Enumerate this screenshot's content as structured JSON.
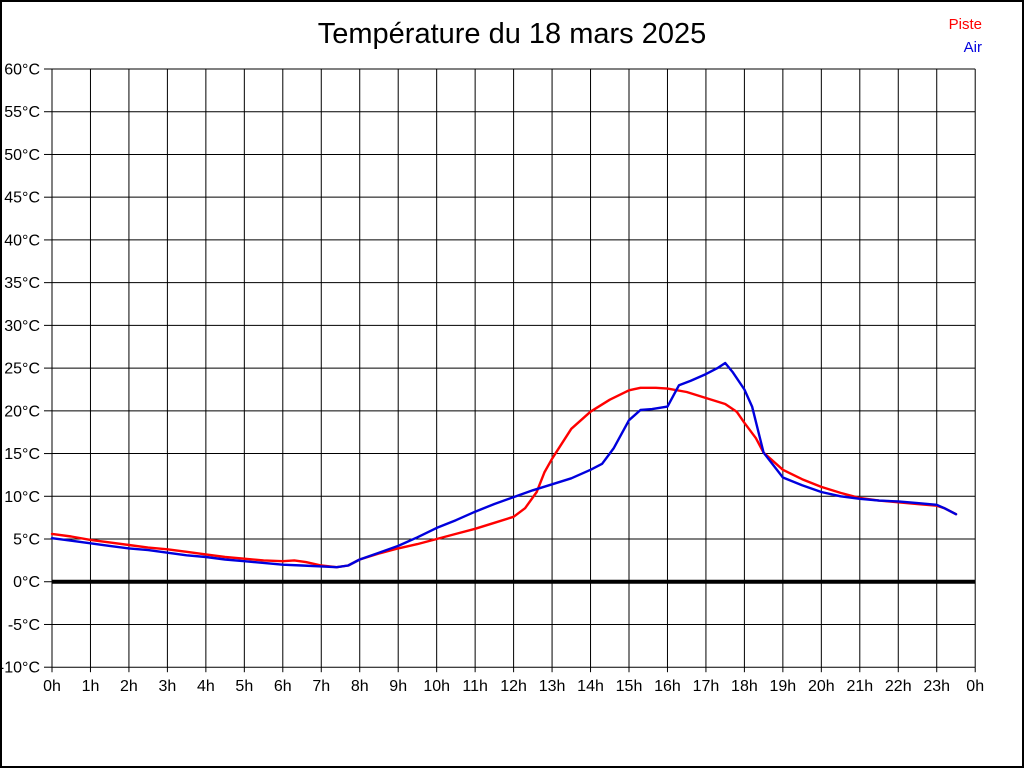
{
  "page": {
    "title": "Température du 18 mars 2025"
  },
  "legend": {
    "items": [
      {
        "label": "Piste",
        "color": "#ff0000"
      },
      {
        "label": "Air",
        "color": "#0000dd"
      }
    ]
  },
  "chart_data": {
    "type": "line",
    "title": "Température du 18 mars 2025",
    "x_unit": "hour_of_day",
    "xlabel": "",
    "ylabel": "",
    "xlim": [
      0,
      24
    ],
    "ylim": [
      -10,
      60
    ],
    "y_tick_step": 5,
    "y_tick_suffix": "°C",
    "x_tick_labels": [
      "0h",
      "1h",
      "2h",
      "3h",
      "4h",
      "5h",
      "6h",
      "7h",
      "8h",
      "9h",
      "10h",
      "11h",
      "12h",
      "13h",
      "14h",
      "15h",
      "16h",
      "17h",
      "18h",
      "19h",
      "20h",
      "21h",
      "22h",
      "23h",
      "0h"
    ],
    "grid": true,
    "grid_color": "#000000",
    "zero_line_bold": true,
    "legend_position": "top-right",
    "series": [
      {
        "name": "Piste",
        "color": "#ff0000",
        "points": [
          [
            0,
            5.6
          ],
          [
            0.5,
            5.3
          ],
          [
            1,
            4.9
          ],
          [
            1.5,
            4.6
          ],
          [
            2,
            4.3
          ],
          [
            2.5,
            4.0
          ],
          [
            3,
            3.8
          ],
          [
            3.5,
            3.5
          ],
          [
            4,
            3.2
          ],
          [
            4.5,
            2.9
          ],
          [
            5,
            2.7
          ],
          [
            5.5,
            2.5
          ],
          [
            6,
            2.4
          ],
          [
            6.3,
            2.5
          ],
          [
            6.6,
            2.3
          ],
          [
            7,
            1.9
          ],
          [
            7.4,
            1.7
          ],
          [
            7.7,
            1.9
          ],
          [
            8,
            2.6
          ],
          [
            8.5,
            3.3
          ],
          [
            9,
            3.9
          ],
          [
            9.5,
            4.4
          ],
          [
            10,
            5.0
          ],
          [
            10.5,
            5.6
          ],
          [
            11,
            6.2
          ],
          [
            11.5,
            6.9
          ],
          [
            12,
            7.6
          ],
          [
            12.3,
            8.6
          ],
          [
            12.6,
            10.5
          ],
          [
            12.8,
            12.8
          ],
          [
            13,
            14.4
          ],
          [
            13.5,
            17.9
          ],
          [
            14,
            19.9
          ],
          [
            14.5,
            21.3
          ],
          [
            15,
            22.4
          ],
          [
            15.3,
            22.7
          ],
          [
            15.7,
            22.7
          ],
          [
            16,
            22.6
          ],
          [
            16.5,
            22.2
          ],
          [
            17,
            21.5
          ],
          [
            17.5,
            20.8
          ],
          [
            17.8,
            19.9
          ],
          [
            18,
            18.6
          ],
          [
            18.3,
            16.8
          ],
          [
            18.5,
            15.1
          ],
          [
            19,
            13.1
          ],
          [
            19.5,
            12.0
          ],
          [
            20,
            11.1
          ],
          [
            20.5,
            10.4
          ],
          [
            21,
            9.8
          ],
          [
            21.5,
            9.5
          ],
          [
            22,
            9.3
          ],
          [
            22.5,
            9.1
          ],
          [
            23,
            8.9
          ],
          [
            23.2,
            8.6
          ],
          [
            23.5,
            7.9
          ]
        ]
      },
      {
        "name": "Air",
        "color": "#0000dd",
        "points": [
          [
            0,
            5.1
          ],
          [
            0.5,
            4.8
          ],
          [
            1,
            4.5
          ],
          [
            1.5,
            4.2
          ],
          [
            2,
            3.9
          ],
          [
            2.5,
            3.7
          ],
          [
            3,
            3.4
          ],
          [
            3.5,
            3.1
          ],
          [
            4,
            2.9
          ],
          [
            4.5,
            2.6
          ],
          [
            5,
            2.4
          ],
          [
            5.5,
            2.2
          ],
          [
            6,
            2.0
          ],
          [
            6.5,
            1.9
          ],
          [
            7,
            1.8
          ],
          [
            7.4,
            1.7
          ],
          [
            7.7,
            1.9
          ],
          [
            8,
            2.6
          ],
          [
            8.5,
            3.4
          ],
          [
            9,
            4.2
          ],
          [
            9.5,
            5.2
          ],
          [
            10,
            6.3
          ],
          [
            10.5,
            7.2
          ],
          [
            11,
            8.2
          ],
          [
            11.5,
            9.1
          ],
          [
            12,
            9.9
          ],
          [
            12.5,
            10.7
          ],
          [
            13,
            11.4
          ],
          [
            13.5,
            12.1
          ],
          [
            14,
            13.1
          ],
          [
            14.3,
            13.8
          ],
          [
            14.6,
            15.6
          ],
          [
            15,
            18.9
          ],
          [
            15.3,
            20.1
          ],
          [
            15.6,
            20.2
          ],
          [
            16,
            20.5
          ],
          [
            16.3,
            23.0
          ],
          [
            16.6,
            23.5
          ],
          [
            17,
            24.3
          ],
          [
            17.3,
            25.0
          ],
          [
            17.5,
            25.6
          ],
          [
            17.7,
            24.5
          ],
          [
            18,
            22.5
          ],
          [
            18.2,
            20.5
          ],
          [
            18.5,
            15.1
          ],
          [
            19,
            12.2
          ],
          [
            19.5,
            11.3
          ],
          [
            20,
            10.5
          ],
          [
            20.5,
            10.0
          ],
          [
            21,
            9.7
          ],
          [
            21.5,
            9.5
          ],
          [
            22,
            9.4
          ],
          [
            22.5,
            9.2
          ],
          [
            23,
            9.0
          ],
          [
            23.2,
            8.6
          ],
          [
            23.5,
            7.9
          ]
        ]
      }
    ]
  }
}
